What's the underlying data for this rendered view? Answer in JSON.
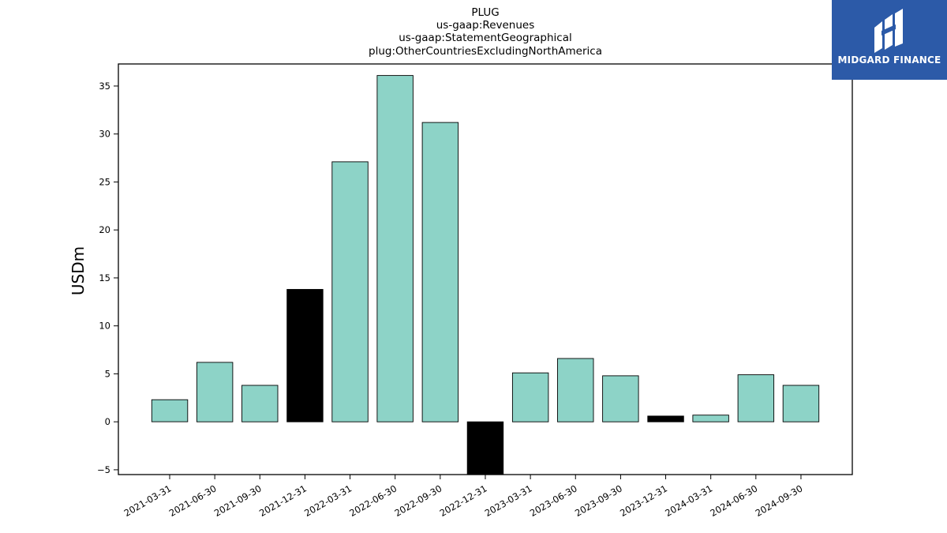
{
  "logo": {
    "text": "MIDGARD FINANCE"
  },
  "colors": {
    "positive_fill": "#8dd3c7",
    "highlight_fill": "#000000",
    "logo_bg": "#2c5aa8"
  },
  "chart_data": {
    "type": "bar",
    "title_lines": [
      "PLUG",
      "us-gaap:Revenues",
      "us-gaap:StatementGeographical",
      "plug:OtherCountriesExcludingNorthAmerica"
    ],
    "xlabel": "",
    "ylabel": "USDm",
    "ylim": [
      -5.5,
      37.3
    ],
    "yticks": [
      -5,
      0,
      5,
      10,
      15,
      20,
      25,
      30,
      35
    ],
    "grid": false,
    "categories": [
      "2021-03-31",
      "2021-06-30",
      "2021-09-30",
      "2021-12-31",
      "2022-03-31",
      "2022-06-30",
      "2022-09-30",
      "2022-12-31",
      "2023-03-31",
      "2023-06-30",
      "2023-09-30",
      "2023-12-31",
      "2024-03-31",
      "2024-06-30",
      "2024-09-30"
    ],
    "values": [
      2.3,
      6.2,
      3.8,
      13.8,
      27.1,
      36.1,
      31.2,
      -5.5,
      5.1,
      6.6,
      4.8,
      0.6,
      0.7,
      4.9,
      3.8
    ],
    "bar_colors": [
      "#8dd3c7",
      "#8dd3c7",
      "#8dd3c7",
      "#000000",
      "#8dd3c7",
      "#8dd3c7",
      "#8dd3c7",
      "#000000",
      "#8dd3c7",
      "#8dd3c7",
      "#8dd3c7",
      "#000000",
      "#8dd3c7",
      "#8dd3c7",
      "#8dd3c7"
    ]
  }
}
